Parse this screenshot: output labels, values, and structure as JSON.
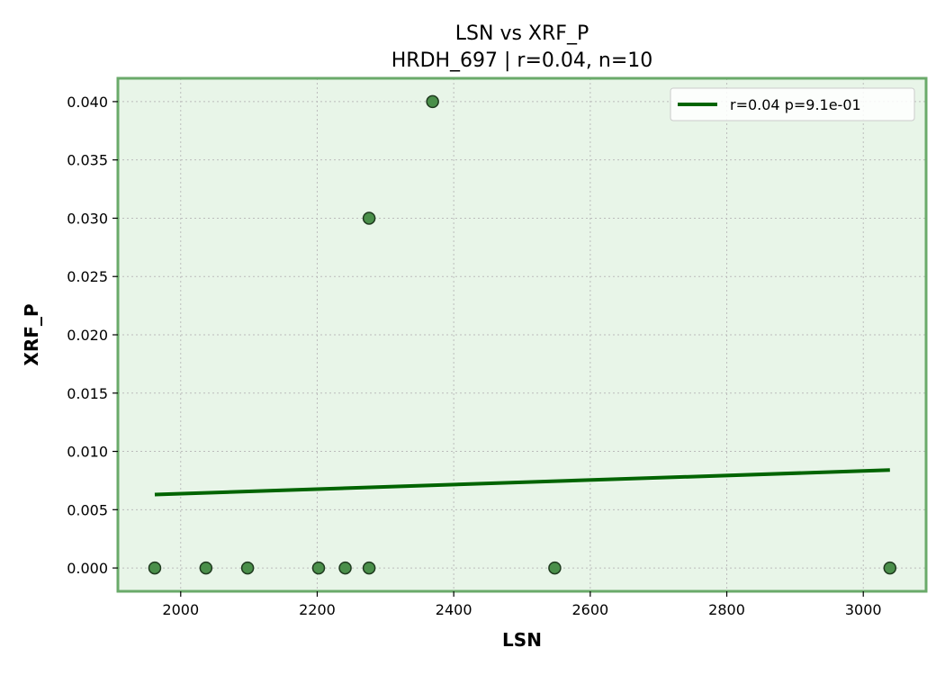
{
  "chart_data": {
    "type": "scatter",
    "title": "LSN vs XRF_P",
    "subtitle": "HRDH_697 | r=0.04, n=10",
    "xlabel": "LSN",
    "ylabel": "XRF_P",
    "xlim": [
      1908,
      3092
    ],
    "ylim": [
      -0.002,
      0.042
    ],
    "x_ticks": [
      2000,
      2200,
      2400,
      2600,
      2800,
      3000
    ],
    "y_ticks": [
      0.0,
      0.005,
      0.01,
      0.015,
      0.02,
      0.025,
      0.03,
      0.035,
      0.04
    ],
    "x_tick_labels": [
      "2000",
      "2200",
      "2400",
      "2600",
      "2800",
      "3000"
    ],
    "y_tick_labels": [
      "0.000",
      "0.005",
      "0.010",
      "0.015",
      "0.020",
      "0.025",
      "0.030",
      "0.035",
      "0.040"
    ],
    "grid": true,
    "legend_position": "top-right",
    "points": {
      "x": [
        1962,
        2037,
        2098,
        2202,
        2241,
        2276,
        2276,
        2369,
        2548,
        3039
      ],
      "y": [
        0.0,
        0.0,
        0.0,
        0.0,
        0.0,
        0.0,
        0.03,
        0.04,
        0.0,
        0.0
      ]
    },
    "fit_line": {
      "name": "r=0.04  p=9.1e-01",
      "x": [
        1962,
        3039
      ],
      "y": [
        0.0063,
        0.0084
      ]
    },
    "colors": {
      "background": "#e8f5e8",
      "frame": "#6aaa6a",
      "point_fill": "#4a8f4a",
      "point_edge": "#1f3a1f",
      "fit_line": "#006400",
      "grid": "#bcbcbc"
    }
  }
}
